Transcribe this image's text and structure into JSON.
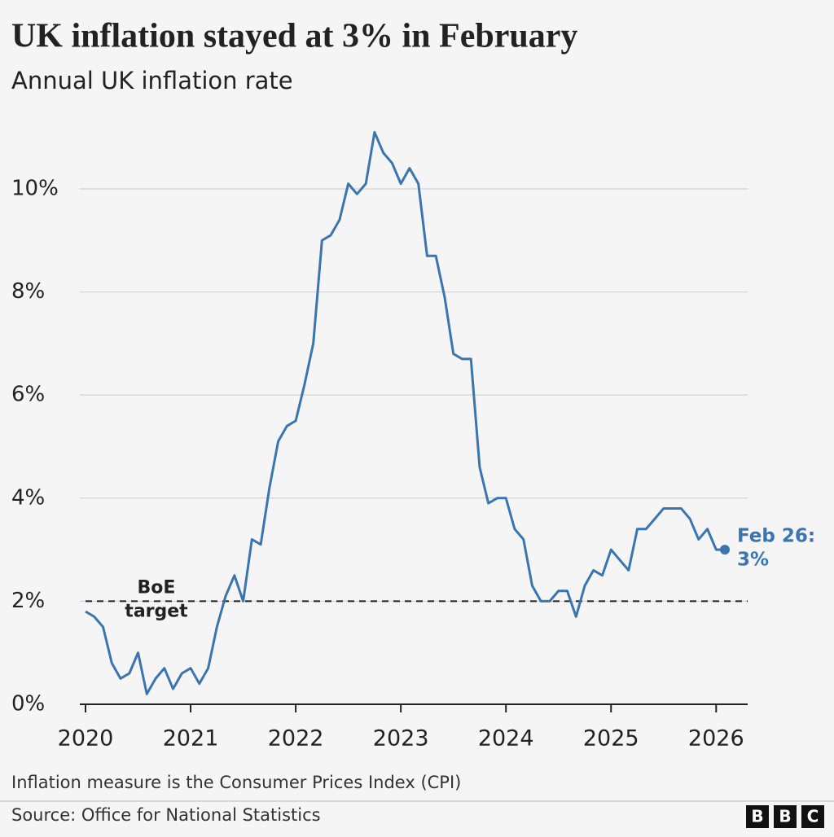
{
  "chart_data": {
    "type": "line",
    "title": "UK inflation stayed at 3% in February",
    "subtitle": "Annual UK inflation rate",
    "x": [
      2020,
      2020.083,
      2020.167,
      2020.25,
      2020.333,
      2020.417,
      2020.5,
      2020.583,
      2020.667,
      2020.75,
      2020.833,
      2020.917,
      2021,
      2021.083,
      2021.167,
      2021.25,
      2021.333,
      2021.417,
      2021.5,
      2021.583,
      2021.667,
      2021.75,
      2021.833,
      2021.917,
      2022,
      2022.083,
      2022.167,
      2022.25,
      2022.333,
      2022.417,
      2022.5,
      2022.583,
      2022.667,
      2022.75,
      2022.833,
      2022.917,
      2023,
      2023.083,
      2023.167,
      2023.25,
      2023.333,
      2023.417,
      2023.5,
      2023.583,
      2023.667,
      2023.75,
      2023.833,
      2023.917,
      2024,
      2024.083,
      2024.167,
      2024.25,
      2024.333,
      2024.417,
      2024.5,
      2024.583,
      2024.667,
      2024.75,
      2024.833,
      2024.917,
      2025,
      2025.083,
      2025.167,
      2025.25,
      2025.333,
      2025.417,
      2025.5,
      2025.583,
      2025.667,
      2025.75,
      2025.833,
      2025.917,
      2026,
      2026.083
    ],
    "values": [
      1.8,
      1.7,
      1.5,
      0.8,
      0.5,
      0.6,
      1.0,
      0.2,
      0.5,
      0.7,
      0.3,
      0.6,
      0.7,
      0.4,
      0.7,
      1.5,
      2.1,
      2.5,
      2.0,
      3.2,
      3.1,
      4.2,
      5.1,
      5.4,
      5.5,
      6.2,
      7.0,
      9.0,
      9.1,
      9.4,
      10.1,
      9.9,
      10.1,
      11.1,
      10.7,
      10.5,
      10.1,
      10.4,
      10.1,
      8.7,
      8.7,
      7.9,
      6.8,
      6.7,
      6.7,
      4.6,
      3.9,
      4.0,
      4.0,
      3.4,
      3.2,
      2.3,
      2.0,
      2.0,
      2.2,
      2.2,
      1.7,
      2.3,
      2.6,
      2.5,
      3.0,
      2.8,
      2.6,
      3.4,
      3.4,
      3.6,
      3.8,
      3.8,
      3.8,
      3.6,
      3.2,
      3.4,
      3.0,
      3.0
    ],
    "color": "#3a75b0",
    "xlim": [
      2020,
      2026.3
    ],
    "xticks": [
      2020,
      2021,
      2022,
      2023,
      2024,
      2025,
      2026
    ],
    "ylim": [
      0,
      11.5
    ],
    "yticks": [
      {
        "value": 0,
        "label": "0%"
      },
      {
        "value": 2,
        "label": "2%"
      },
      {
        "value": 4,
        "label": "4%"
      },
      {
        "value": 6,
        "label": "6%"
      },
      {
        "value": 8,
        "label": "8%"
      },
      {
        "value": 10,
        "label": "10%"
      }
    ],
    "grid": true,
    "target_line": 2,
    "target_label": [
      "BoE",
      "target"
    ],
    "end_label": [
      "Feb 26:",
      "3%"
    ],
    "note": "Inflation measure is the Consumer Prices Index (CPI)",
    "source": "Source: Office for National Statistics",
    "logo": [
      "B",
      "B",
      "C"
    ]
  }
}
